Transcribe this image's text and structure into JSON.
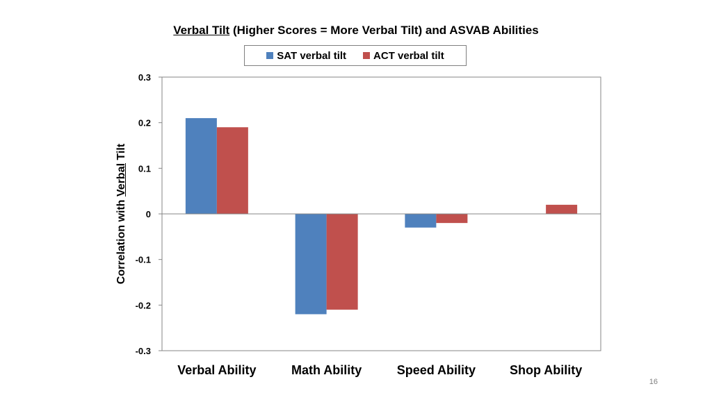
{
  "title": {
    "part1": "Verbal Tilt",
    "part2": " (Higher Scores = More Verbal Tilt) and ASVAB Abilities"
  },
  "page_number": "16",
  "chart_data": {
    "type": "bar",
    "title": "Verbal Tilt (Higher Scores = More Verbal Tilt) and ASVAB Abilities",
    "categories": [
      "Verbal Ability",
      "Math Ability",
      "Speed Ability",
      "Shop Ability"
    ],
    "series": [
      {
        "name": "SAT verbal tilt",
        "color": "#4f81bd",
        "values": [
          0.21,
          -0.22,
          -0.03,
          0.0
        ]
      },
      {
        "name": "ACT verbal tilt",
        "color": "#c0504d",
        "values": [
          0.19,
          -0.21,
          -0.02,
          0.02
        ]
      }
    ],
    "ylabel_part1": "Correlation with ",
    "ylabel_part2": "Verbal",
    "ylabel_part3": " Tilt",
    "xlabel": "",
    "ylim": [
      -0.3,
      0.3
    ],
    "yticks": [
      "-0.3",
      "-0.2",
      "-0.1",
      "0",
      "0.1",
      "0.2",
      "0.3"
    ],
    "legend_position": "top",
    "grid": false
  }
}
